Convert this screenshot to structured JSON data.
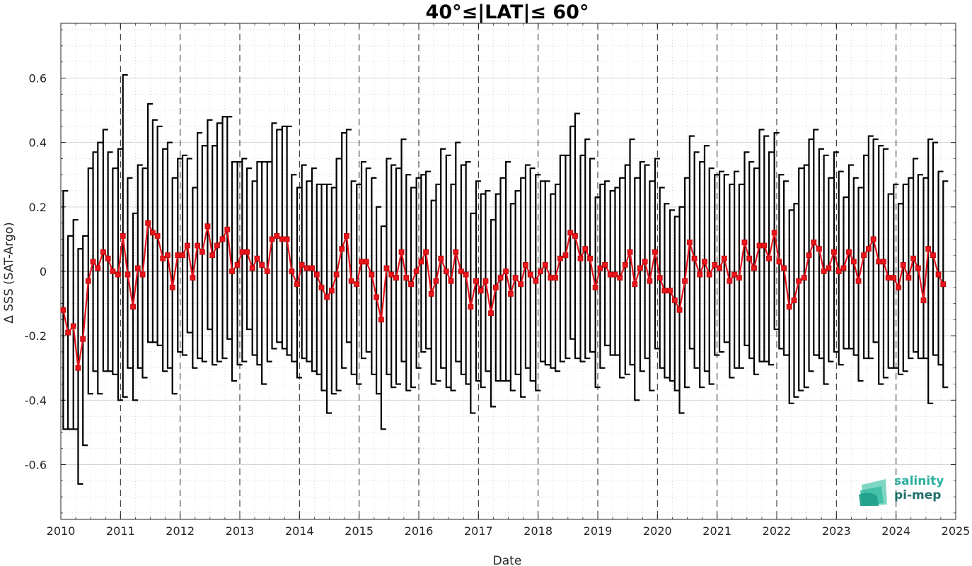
{
  "colors": {
    "series": "#e8141c",
    "errorbar": "#000000",
    "grid": "#c8c8c8",
    "logo_primary": "#2ab0a0",
    "logo_secondary": "#1f6f6a"
  },
  "logo": {
    "line1": "salinity",
    "line2": "pi-mep"
  },
  "chart_data": {
    "type": "line",
    "title": "40°≤|LAT|≤ 60°",
    "xlabel": "Date",
    "ylabel": "Δ SSS (SAT-Argo)",
    "xlim": [
      2010,
      2025
    ],
    "ylim": [
      -0.77,
      0.77
    ],
    "xticks": [
      "2010",
      "2011",
      "2012",
      "2013",
      "2014",
      "2015",
      "2016",
      "2017",
      "2018",
      "2019",
      "2020",
      "2021",
      "2022",
      "2023",
      "2024",
      "2025"
    ],
    "yticks": [
      "-0.6",
      "-0.4",
      "-0.2",
      "0",
      "0.2",
      "0.4",
      "0.6"
    ],
    "ytick_values": [
      -0.6,
      -0.4,
      -0.2,
      0,
      0.2,
      0.4,
      0.6
    ],
    "grid": "minor dotted, dashed vertical lines at years",
    "series": [
      {
        "x": [
          2010.04,
          2010.12,
          2010.21,
          2010.29,
          2010.37,
          2010.46,
          2010.54,
          2010.62,
          2010.71,
          2010.79,
          2010.87,
          2010.96,
          2011.04,
          2011.12,
          2011.21,
          2011.29,
          2011.37,
          2011.46,
          2011.54,
          2011.62,
          2011.71,
          2011.79,
          2011.87,
          2011.96,
          2012.04,
          2012.12,
          2012.21,
          2012.29,
          2012.37,
          2012.46,
          2012.54,
          2012.62,
          2012.71,
          2012.79,
          2012.87,
          2012.96,
          2013.04,
          2013.12,
          2013.21,
          2013.29,
          2013.37,
          2013.46,
          2013.54,
          2013.62,
          2013.71,
          2013.79,
          2013.87,
          2013.96,
          2014.04,
          2014.12,
          2014.21,
          2014.29,
          2014.37,
          2014.46,
          2014.54,
          2014.62,
          2014.71,
          2014.79,
          2014.87,
          2014.96,
          2015.04,
          2015.12,
          2015.21,
          2015.29,
          2015.37,
          2015.46,
          2015.54,
          2015.62,
          2015.71,
          2015.79,
          2015.87,
          2015.96,
          2016.04,
          2016.12,
          2016.21,
          2016.29,
          2016.37,
          2016.46,
          2016.54,
          2016.62,
          2016.71,
          2016.79,
          2016.87,
          2016.96,
          2017.04,
          2017.12,
          2017.21,
          2017.29,
          2017.37,
          2017.46,
          2017.54,
          2017.62,
          2017.71,
          2017.79,
          2017.87,
          2017.96,
          2018.04,
          2018.12,
          2018.21,
          2018.29,
          2018.37,
          2018.46,
          2018.54,
          2018.62,
          2018.71,
          2018.79,
          2018.87,
          2018.96,
          2019.04,
          2019.12,
          2019.21,
          2019.29,
          2019.37,
          2019.46,
          2019.54,
          2019.62,
          2019.71,
          2019.79,
          2019.87,
          2019.96,
          2020.04,
          2020.12,
          2020.21,
          2020.29,
          2020.37,
          2020.46,
          2020.54,
          2020.62,
          2020.71,
          2020.79,
          2020.87,
          2020.96,
          2021.04,
          2021.12,
          2021.21,
          2021.29,
          2021.37,
          2021.46,
          2021.54,
          2021.62,
          2021.71,
          2021.79,
          2021.87,
          2021.96,
          2022.04,
          2022.12,
          2022.21,
          2022.29,
          2022.37,
          2022.46,
          2022.54,
          2022.62,
          2022.71,
          2022.79,
          2022.87,
          2022.96,
          2023.04,
          2023.12,
          2023.21,
          2023.29,
          2023.37,
          2023.46,
          2023.54,
          2023.62,
          2023.71,
          2023.79,
          2023.87,
          2023.96,
          2024.04,
          2024.12,
          2024.21,
          2024.29,
          2024.37,
          2024.46,
          2024.54,
          2024.62,
          2024.71,
          2024.79
        ],
        "y": [
          -0.12,
          -0.19,
          -0.17,
          -0.3,
          -0.21,
          -0.03,
          0.03,
          0.01,
          0.06,
          0.04,
          0.0,
          -0.01,
          0.11,
          -0.01,
          -0.11,
          0.01,
          -0.01,
          0.15,
          0.12,
          0.11,
          0.04,
          0.05,
          -0.05,
          0.05,
          0.05,
          0.08,
          -0.02,
          0.08,
          0.06,
          0.14,
          0.05,
          0.08,
          0.1,
          0.13,
          0.0,
          0.02,
          0.06,
          0.06,
          0.01,
          0.04,
          0.02,
          0.0,
          0.1,
          0.11,
          0.1,
          0.1,
          0.0,
          -0.04,
          0.02,
          0.01,
          0.01,
          -0.01,
          -0.05,
          -0.08,
          -0.06,
          -0.01,
          0.07,
          0.11,
          -0.03,
          -0.04,
          0.03,
          0.03,
          -0.01,
          -0.08,
          -0.15,
          0.01,
          -0.01,
          -0.02,
          0.06,
          -0.02,
          -0.04,
          0.0,
          0.03,
          0.06,
          -0.07,
          -0.03,
          0.04,
          0.0,
          -0.03,
          0.06,
          0.0,
          -0.01,
          -0.11,
          -0.03,
          -0.06,
          -0.03,
          -0.13,
          -0.05,
          -0.02,
          0.0,
          -0.07,
          -0.02,
          -0.04,
          0.02,
          -0.01,
          -0.03,
          0.0,
          0.02,
          -0.02,
          -0.02,
          0.04,
          0.05,
          0.12,
          0.11,
          0.04,
          0.07,
          0.04,
          -0.05,
          0.01,
          0.02,
          -0.01,
          -0.01,
          -0.02,
          0.02,
          0.06,
          -0.04,
          0.01,
          0.03,
          -0.03,
          0.06,
          -0.02,
          -0.06,
          -0.06,
          -0.09,
          -0.12,
          -0.03,
          0.09,
          0.04,
          -0.01,
          0.03,
          -0.01,
          0.02,
          0.01,
          0.04,
          -0.03,
          -0.01,
          -0.02,
          0.09,
          0.04,
          0.01,
          0.08,
          0.08,
          0.04,
          0.12,
          0.03,
          0.01,
          -0.11,
          -0.09,
          -0.03,
          -0.02,
          0.05,
          0.09,
          0.07,
          0.0,
          0.01,
          0.06,
          0.0,
          0.01,
          0.06,
          0.03,
          -0.03,
          0.05,
          0.07,
          0.1,
          0.03,
          0.03,
          -0.02,
          -0.02,
          -0.05,
          0.02,
          -0.02,
          0.04,
          0.01,
          -0.09,
          0.07,
          0.05,
          -0.01,
          -0.04
        ],
        "upper": [
          0.25,
          0.11,
          0.16,
          0.07,
          0.11,
          0.32,
          0.37,
          0.4,
          0.44,
          0.37,
          0.32,
          0.38,
          0.61,
          0.29,
          0.18,
          0.33,
          0.32,
          0.52,
          0.47,
          0.45,
          0.38,
          0.4,
          0.29,
          0.35,
          0.36,
          0.35,
          0.26,
          0.43,
          0.39,
          0.47,
          0.39,
          0.46,
          0.48,
          0.48,
          0.34,
          0.34,
          0.35,
          0.32,
          0.28,
          0.34,
          0.34,
          0.34,
          0.46,
          0.44,
          0.45,
          0.45,
          0.3,
          0.26,
          0.33,
          0.28,
          0.32,
          0.27,
          0.27,
          0.27,
          0.26,
          0.35,
          0.43,
          0.44,
          0.28,
          0.27,
          0.34,
          0.32,
          0.29,
          0.2,
          0.14,
          0.35,
          0.33,
          0.32,
          0.41,
          0.3,
          0.26,
          0.29,
          0.3,
          0.31,
          0.22,
          0.27,
          0.38,
          0.36,
          0.27,
          0.4,
          0.33,
          0.34,
          0.18,
          0.28,
          0.24,
          0.25,
          0.16,
          0.24,
          0.29,
          0.34,
          0.21,
          0.25,
          0.29,
          0.33,
          0.32,
          0.3,
          0.28,
          0.28,
          0.24,
          0.27,
          0.36,
          0.36,
          0.45,
          0.49,
          0.36,
          0.41,
          0.35,
          0.23,
          0.27,
          0.28,
          0.25,
          0.26,
          0.29,
          0.33,
          0.41,
          0.29,
          0.34,
          0.33,
          0.28,
          0.35,
          0.26,
          0.21,
          0.19,
          0.17,
          0.2,
          0.29,
          0.42,
          0.37,
          0.34,
          0.39,
          0.32,
          0.3,
          0.31,
          0.3,
          0.27,
          0.31,
          0.27,
          0.37,
          0.34,
          0.32,
          0.44,
          0.42,
          0.37,
          0.43,
          0.3,
          0.28,
          0.19,
          0.21,
          0.32,
          0.33,
          0.41,
          0.44,
          0.38,
          0.36,
          0.29,
          0.37,
          0.31,
          0.23,
          0.33,
          0.29,
          0.26,
          0.36,
          0.42,
          0.41,
          0.39,
          0.38,
          0.24,
          0.27,
          0.21,
          0.27,
          0.29,
          0.35,
          0.3,
          0.29,
          0.41,
          0.4,
          0.31,
          0.28
        ],
        "lower": [
          -0.49,
          -0.49,
          -0.49,
          -0.66,
          -0.54,
          -0.38,
          -0.31,
          -0.38,
          -0.31,
          -0.31,
          -0.32,
          -0.4,
          -0.39,
          -0.3,
          -0.4,
          -0.3,
          -0.33,
          -0.22,
          -0.22,
          -0.23,
          -0.31,
          -0.3,
          -0.38,
          -0.25,
          -0.26,
          -0.19,
          -0.3,
          -0.27,
          -0.28,
          -0.18,
          -0.29,
          -0.28,
          -0.27,
          -0.21,
          -0.34,
          -0.29,
          -0.28,
          -0.18,
          -0.26,
          -0.29,
          -0.35,
          -0.28,
          -0.24,
          -0.22,
          -0.24,
          -0.26,
          -0.28,
          -0.33,
          -0.27,
          -0.28,
          -0.31,
          -0.32,
          -0.37,
          -0.44,
          -0.38,
          -0.37,
          -0.3,
          -0.22,
          -0.32,
          -0.35,
          -0.27,
          -0.25,
          -0.32,
          -0.38,
          -0.49,
          -0.32,
          -0.36,
          -0.35,
          -0.28,
          -0.37,
          -0.36,
          -0.3,
          -0.25,
          -0.24,
          -0.35,
          -0.34,
          -0.3,
          -0.36,
          -0.37,
          -0.28,
          -0.32,
          -0.35,
          -0.44,
          -0.34,
          -0.36,
          -0.31,
          -0.42,
          -0.34,
          -0.34,
          -0.34,
          -0.37,
          -0.32,
          -0.39,
          -0.3,
          -0.34,
          -0.37,
          -0.28,
          -0.29,
          -0.3,
          -0.31,
          -0.28,
          -0.27,
          -0.21,
          -0.27,
          -0.28,
          -0.27,
          -0.25,
          -0.36,
          -0.3,
          -0.23,
          -0.26,
          -0.26,
          -0.33,
          -0.32,
          -0.29,
          -0.4,
          -0.31,
          -0.27,
          -0.37,
          -0.24,
          -0.3,
          -0.33,
          -0.34,
          -0.37,
          -0.44,
          -0.36,
          -0.24,
          -0.3,
          -0.36,
          -0.31,
          -0.35,
          -0.26,
          -0.25,
          -0.22,
          -0.33,
          -0.3,
          -0.3,
          -0.23,
          -0.27,
          -0.32,
          -0.28,
          -0.28,
          -0.29,
          -0.18,
          -0.24,
          -0.26,
          -0.41,
          -0.39,
          -0.37,
          -0.36,
          -0.31,
          -0.26,
          -0.27,
          -0.35,
          -0.28,
          -0.25,
          -0.29,
          -0.24,
          -0.24,
          -0.26,
          -0.34,
          -0.27,
          -0.27,
          -0.22,
          -0.35,
          -0.33,
          -0.3,
          -0.3,
          -0.32,
          -0.31,
          -0.27,
          -0.25,
          -0.27,
          -0.27,
          -0.41,
          -0.26,
          -0.29,
          -0.36
        ]
      }
    ]
  }
}
